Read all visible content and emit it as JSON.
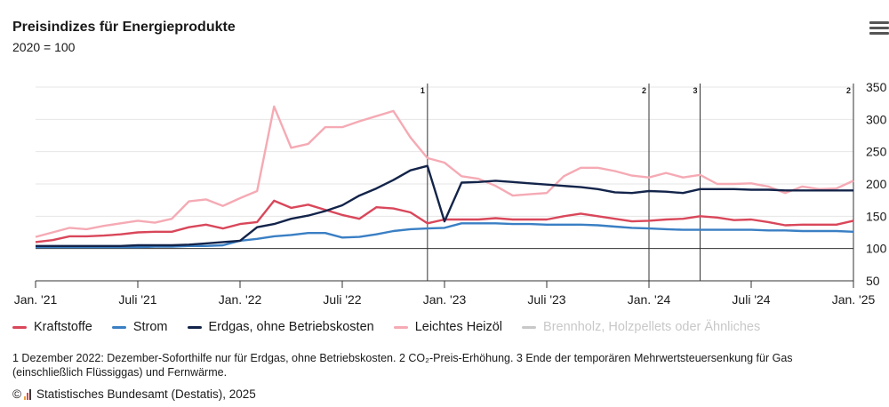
{
  "header": {
    "title": "Preisindizes für Energieprodukte",
    "subtitle": "2020 = 100",
    "menu_icon": "hamburger-menu-icon"
  },
  "chart_data": {
    "type": "line",
    "x_ticks": [
      "Jan. '21",
      "Juli '21",
      "Jan. '22",
      "Juli '22",
      "Jan. '23",
      "Juli '23",
      "Jan. '24",
      "Juli '24",
      "Jan. '25"
    ],
    "x_start": "2021-01",
    "x_end": "2025-01",
    "y_ticks": [
      50,
      100,
      150,
      200,
      250,
      300,
      350
    ],
    "ylim": [
      50,
      350
    ],
    "y_axis_position": "right",
    "grid": true,
    "reference_line": 100,
    "legend_position": "bottom-left",
    "annotations": [
      {
        "label": "1",
        "x": "2022-12"
      },
      {
        "label": "2",
        "x": "2024-01"
      },
      {
        "label": "3",
        "x": "2024-04"
      },
      {
        "label": "2",
        "x": "2025-01"
      }
    ],
    "series": [
      {
        "name": "Kraftstoffe",
        "color": "#d9475a",
        "visible": true,
        "values": [
          110,
          113,
          119,
          119,
          120,
          122,
          125,
          126,
          126,
          133,
          137,
          131,
          138,
          141,
          174,
          163,
          168,
          160,
          152,
          146,
          164,
          162,
          156,
          139,
          145,
          145,
          145,
          147,
          145,
          145,
          145,
          150,
          154,
          150,
          146,
          142,
          143,
          145,
          146,
          150,
          148,
          144,
          145,
          141,
          136,
          137,
          137,
          137,
          143
        ]
      },
      {
        "name": "Strom",
        "color": "#3a7fc4",
        "visible": true,
        "values": [
          102,
          102,
          102,
          102,
          102,
          102,
          102,
          103,
          103,
          104,
          104,
          105,
          112,
          115,
          119,
          121,
          124,
          124,
          117,
          118,
          122,
          127,
          130,
          131,
          132,
          139,
          139,
          139,
          138,
          138,
          137,
          137,
          137,
          136,
          134,
          132,
          131,
          130,
          129,
          129,
          129,
          129,
          129,
          128,
          128,
          127,
          127,
          127,
          126
        ]
      },
      {
        "name": "Erdgas, ohne Betriebskosten",
        "color": "#13244a",
        "visible": true,
        "values": [
          104,
          104,
          104,
          104,
          104,
          104,
          105,
          105,
          105,
          106,
          108,
          110,
          112,
          133,
          138,
          146,
          151,
          158,
          167,
          182,
          193,
          206,
          221,
          228,
          142,
          202,
          203,
          205,
          203,
          201,
          199,
          197,
          195,
          192,
          187,
          186,
          189,
          188,
          186,
          192,
          192,
          192,
          191,
          191,
          190,
          190,
          190,
          190,
          190
        ]
      },
      {
        "name": "Leichtes Heizöl",
        "color": "#f5aab4",
        "visible": true,
        "values": [
          118,
          125,
          132,
          130,
          135,
          139,
          143,
          140,
          146,
          173,
          176,
          166,
          178,
          189,
          320,
          256,
          262,
          288,
          288,
          297,
          305,
          313,
          272,
          240,
          233,
          212,
          208,
          197,
          182,
          184,
          186,
          212,
          225,
          225,
          220,
          213,
          210,
          217,
          210,
          214,
          200,
          200,
          201,
          196,
          186,
          196,
          192,
          193,
          205
        ]
      },
      {
        "name": "Brennholz, Holzpellets oder Ähnliches",
        "color": "#c8c8c8",
        "visible": false,
        "values": []
      }
    ]
  },
  "footnote": "1 Dezember 2022: Dezember-Soforthilfe nur für Erdgas, ohne Betriebskosten. 2 CO₂-Preis-Erhöhung. 3 Ende der temporären Mehrwertsteuersenkung für Gas (einschließlich Flüssiggas) und Fernwärme.",
  "credit": {
    "copyright_symbol": "©",
    "icon": "destatis-logo-icon",
    "text": "Statistisches Bundesamt (Destatis), 2025"
  }
}
